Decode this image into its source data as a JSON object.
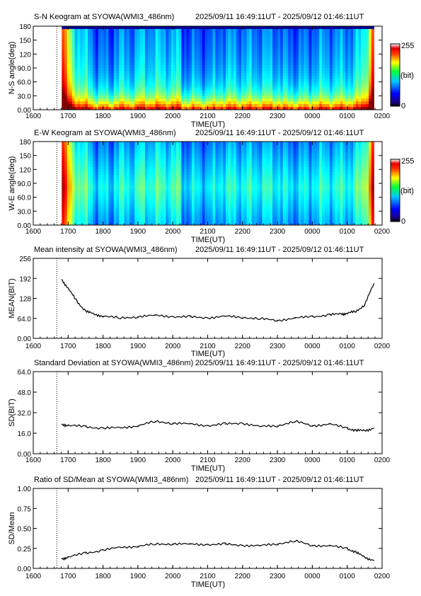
{
  "chart_data": [
    {
      "type": "heatmap",
      "title": "S-N Keogram at SYOWA(WMI3_486nm)",
      "time_range": "2025/09/11 16:49:11UT - 2025/09/12 01:46:11UT",
      "xlabel": "TIME(UT)",
      "ylabel": "N-S angle(deg)",
      "x_ticks": [
        "1600",
        "1700",
        "1800",
        "1900",
        "2000",
        "2100",
        "2200",
        "2300",
        "0000",
        "0100",
        "0200"
      ],
      "y_ticks": [
        "0.00",
        "30.0",
        "60.0",
        "90.0",
        "120",
        "150",
        "180"
      ],
      "ylim": [
        0,
        180
      ],
      "colorbar": {
        "max_label": "255",
        "min_label": "0",
        "unit": "(bit)",
        "range": [
          0,
          255
        ]
      }
    },
    {
      "type": "heatmap",
      "title": "E-W Keogram at SYOWA(WMI3_486nm)",
      "time_range": "2025/09/11 16:49:11UT - 2025/09/12 01:46:11UT",
      "xlabel": "TIME(UT)",
      "ylabel": "W-E angle(deg)",
      "x_ticks": [
        "1600",
        "1700",
        "1800",
        "1900",
        "2000",
        "2100",
        "2200",
        "2300",
        "0000",
        "0100",
        "0200"
      ],
      "y_ticks": [
        "0.00",
        "30.0",
        "60.0",
        "90.0",
        "120",
        "150",
        "180"
      ],
      "ylim": [
        0,
        180
      ],
      "colorbar": {
        "max_label": "255",
        "min_label": "0",
        "unit": "(bit)",
        "range": [
          0,
          255
        ]
      }
    },
    {
      "type": "line",
      "title": "Mean intensity at SYOWA(WMI3_486nm)",
      "time_range": "2025/09/11 16:49:11UT - 2025/09/12 01:46:11UT",
      "xlabel": "TIME(UT)",
      "ylabel": "MEAN(BIT)",
      "x_ticks": [
        "1600",
        "1700",
        "1800",
        "1900",
        "2000",
        "2100",
        "2200",
        "2300",
        "0000",
        "0100",
        "0200"
      ],
      "y_ticks": [
        "0.00",
        "64.0",
        "128",
        "192",
        "256"
      ],
      "ylim": [
        0,
        256
      ],
      "x": [
        "16:49",
        "17:00",
        "17:15",
        "17:30",
        "17:45",
        "18:00",
        "18:30",
        "19:00",
        "19:30",
        "20:00",
        "20:30",
        "21:00",
        "21:30",
        "22:00",
        "22:30",
        "23:00",
        "23:30",
        "00:00",
        "00:30",
        "00:50",
        "01:00",
        "01:15",
        "01:30",
        "01:46"
      ],
      "values": [
        188,
        160,
        118,
        88,
        76,
        72,
        64,
        70,
        73,
        70,
        68,
        66,
        70,
        68,
        62,
        58,
        64,
        70,
        75,
        78,
        80,
        86,
        108,
        175
      ]
    },
    {
      "type": "line",
      "title": "Standard Deviation at SYOWA(WMI3_486nm)",
      "time_range": "2025/09/11 16:49:11UT - 2025/09/12 01:46:11UT",
      "xlabel": "TIME(UT)",
      "ylabel": "SD(BIT)",
      "x_ticks": [
        "1600",
        "1700",
        "1800",
        "1900",
        "2000",
        "2100",
        "2200",
        "2300",
        "0000",
        "0100",
        "0200"
      ],
      "y_ticks": [
        "0.00",
        "16.0",
        "32.0",
        "48.0",
        "64.0"
      ],
      "ylim": [
        0,
        64
      ],
      "x": [
        "16:49",
        "17:00",
        "17:30",
        "18:00",
        "18:30",
        "19:00",
        "19:30",
        "20:00",
        "20:30",
        "21:00",
        "21:30",
        "22:00",
        "22:30",
        "23:00",
        "23:30",
        "00:00",
        "00:30",
        "01:00",
        "01:15",
        "01:30",
        "01:46"
      ],
      "values": [
        23,
        22,
        21,
        20,
        20,
        22,
        25,
        24,
        23,
        22,
        23,
        24,
        21,
        22,
        25,
        22,
        23,
        20,
        18,
        18,
        20
      ]
    },
    {
      "type": "line",
      "title": "Ratio of SD/Mean at SYOWA(WMI3_486nm)",
      "time_range": "2025/09/11 16:49:11UT - 2025/09/12 01:46:11UT",
      "xlabel": "TIME(UT)",
      "ylabel": "SD/Mean",
      "x_ticks": [
        "1600",
        "1700",
        "1800",
        "1900",
        "2000",
        "2100",
        "2200",
        "2300",
        "0000",
        "0100",
        "0200"
      ],
      "y_ticks": [
        "0.00",
        "0.25",
        "0.50",
        "0.75",
        "1.00"
      ],
      "ylim": [
        0,
        1
      ],
      "x": [
        "16:49",
        "17:00",
        "17:30",
        "18:00",
        "18:30",
        "19:00",
        "19:30",
        "20:00",
        "20:30",
        "21:00",
        "21:30",
        "22:00",
        "22:30",
        "23:00",
        "23:30",
        "00:00",
        "00:30",
        "01:00",
        "01:15",
        "01:30",
        "01:46"
      ],
      "values": [
        0.12,
        0.14,
        0.19,
        0.23,
        0.26,
        0.28,
        0.3,
        0.31,
        0.3,
        0.3,
        0.3,
        0.29,
        0.28,
        0.31,
        0.34,
        0.29,
        0.28,
        0.25,
        0.2,
        0.14,
        0.1
      ]
    }
  ]
}
